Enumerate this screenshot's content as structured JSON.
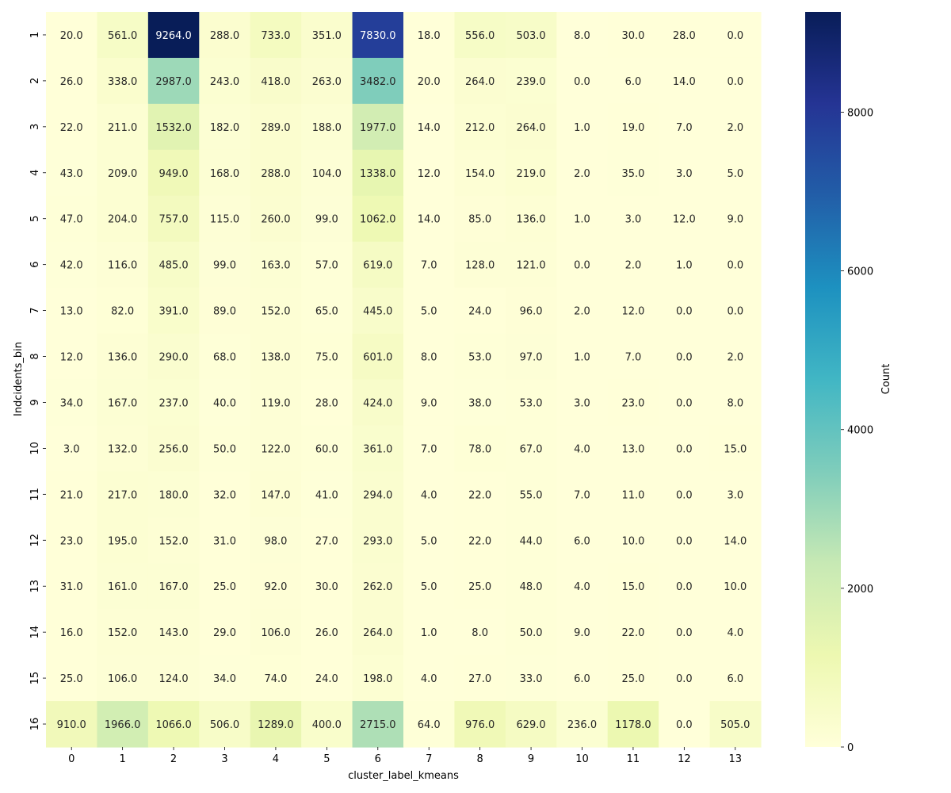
{
  "chart_data": {
    "type": "heatmap",
    "title": "",
    "xlabel": "cluster_label_kmeans",
    "ylabel": "Indcidents_bin",
    "x_categories": [
      "0",
      "1",
      "2",
      "3",
      "4",
      "5",
      "6",
      "7",
      "8",
      "9",
      "10",
      "11",
      "12",
      "13"
    ],
    "y_categories": [
      "1",
      "2",
      "3",
      "4",
      "5",
      "6",
      "7",
      "8",
      "9",
      "10",
      "11",
      "12",
      "13",
      "14",
      "15",
      "16"
    ],
    "values": [
      [
        20.0,
        561.0,
        9264.0,
        288.0,
        733.0,
        351.0,
        7830.0,
        18.0,
        556.0,
        503.0,
        8.0,
        30.0,
        28.0,
        0.0
      ],
      [
        26.0,
        338.0,
        2987.0,
        243.0,
        418.0,
        263.0,
        3482.0,
        20.0,
        264.0,
        239.0,
        0.0,
        6.0,
        14.0,
        0.0
      ],
      [
        22.0,
        211.0,
        1532.0,
        182.0,
        289.0,
        188.0,
        1977.0,
        14.0,
        212.0,
        264.0,
        1.0,
        19.0,
        7.0,
        2.0
      ],
      [
        43.0,
        209.0,
        949.0,
        168.0,
        288.0,
        104.0,
        1338.0,
        12.0,
        154.0,
        219.0,
        2.0,
        35.0,
        3.0,
        5.0
      ],
      [
        47.0,
        204.0,
        757.0,
        115.0,
        260.0,
        99.0,
        1062.0,
        14.0,
        85.0,
        136.0,
        1.0,
        3.0,
        12.0,
        9.0
      ],
      [
        42.0,
        116.0,
        485.0,
        99.0,
        163.0,
        57.0,
        619.0,
        7.0,
        128.0,
        121.0,
        0.0,
        2.0,
        1.0,
        0.0
      ],
      [
        13.0,
        82.0,
        391.0,
        89.0,
        152.0,
        65.0,
        445.0,
        5.0,
        24.0,
        96.0,
        2.0,
        12.0,
        0.0,
        0.0
      ],
      [
        12.0,
        136.0,
        290.0,
        68.0,
        138.0,
        75.0,
        601.0,
        8.0,
        53.0,
        97.0,
        1.0,
        7.0,
        0.0,
        2.0
      ],
      [
        34.0,
        167.0,
        237.0,
        40.0,
        119.0,
        28.0,
        424.0,
        9.0,
        38.0,
        53.0,
        3.0,
        23.0,
        0.0,
        8.0
      ],
      [
        3.0,
        132.0,
        256.0,
        50.0,
        122.0,
        60.0,
        361.0,
        7.0,
        78.0,
        67.0,
        4.0,
        13.0,
        0.0,
        15.0
      ],
      [
        21.0,
        217.0,
        180.0,
        32.0,
        147.0,
        41.0,
        294.0,
        4.0,
        22.0,
        55.0,
        7.0,
        11.0,
        0.0,
        3.0
      ],
      [
        23.0,
        195.0,
        152.0,
        31.0,
        98.0,
        27.0,
        293.0,
        5.0,
        22.0,
        44.0,
        6.0,
        10.0,
        0.0,
        14.0
      ],
      [
        31.0,
        161.0,
        167.0,
        25.0,
        92.0,
        30.0,
        262.0,
        5.0,
        25.0,
        48.0,
        4.0,
        15.0,
        0.0,
        10.0
      ],
      [
        16.0,
        152.0,
        143.0,
        29.0,
        106.0,
        26.0,
        264.0,
        1.0,
        8.0,
        50.0,
        9.0,
        22.0,
        0.0,
        4.0
      ],
      [
        25.0,
        106.0,
        124.0,
        34.0,
        74.0,
        24.0,
        198.0,
        4.0,
        27.0,
        33.0,
        6.0,
        25.0,
        0.0,
        6.0
      ],
      [
        910.0,
        1966.0,
        1066.0,
        506.0,
        1289.0,
        400.0,
        2715.0,
        64.0,
        976.0,
        629.0,
        236.0,
        1178.0,
        0.0,
        505.0
      ]
    ],
    "colormap": "YlGnBu",
    "colormap_stops": [
      "#ffffd9",
      "#edf8b1",
      "#c7e9b4",
      "#7fcdbb",
      "#41b6c4",
      "#1d91c0",
      "#225ea8",
      "#253494",
      "#081d58"
    ],
    "vmin": 0,
    "vmax": 9264,
    "colorbar": {
      "label": "Count",
      "ticks": [
        0,
        2000,
        4000,
        6000,
        8000
      ],
      "tick_labels": [
        "0",
        "2000",
        "4000",
        "6000",
        "8000"
      ]
    },
    "annotation_format": "1 decimal",
    "grid": false,
    "legend": "colorbar-right"
  }
}
